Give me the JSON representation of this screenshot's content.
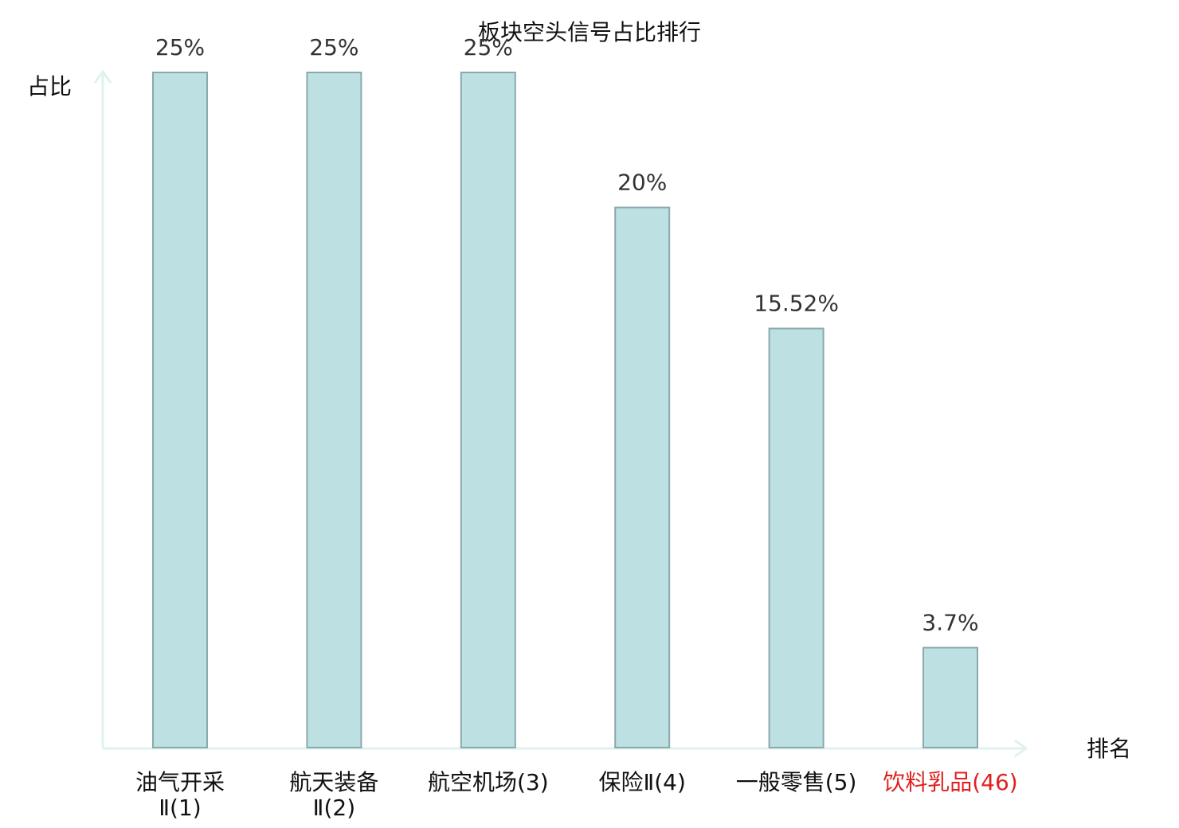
{
  "chart_data": {
    "type": "bar",
    "title": "板块空头信号占比排行",
    "y_label": "占比",
    "x_label": "排名",
    "categories": [
      "油气开采Ⅱ(1)",
      "航天装备Ⅱ(2)",
      "航空机场(3)",
      "保险Ⅱ(4)",
      "一般零售(5)",
      "饮料乳品(46)"
    ],
    "values": [
      25,
      25,
      25,
      20,
      15.52,
      3.7
    ],
    "value_labels": [
      "25%",
      "25%",
      "25%",
      "20%",
      "15.52%",
      "3.7%"
    ],
    "color": "#bde0e3",
    "edge_color": "#8ba9ac",
    "highlight_color": "#e02020",
    "highlight_index": 5,
    "ylim": [
      0,
      25
    ],
    "grid": false
  }
}
